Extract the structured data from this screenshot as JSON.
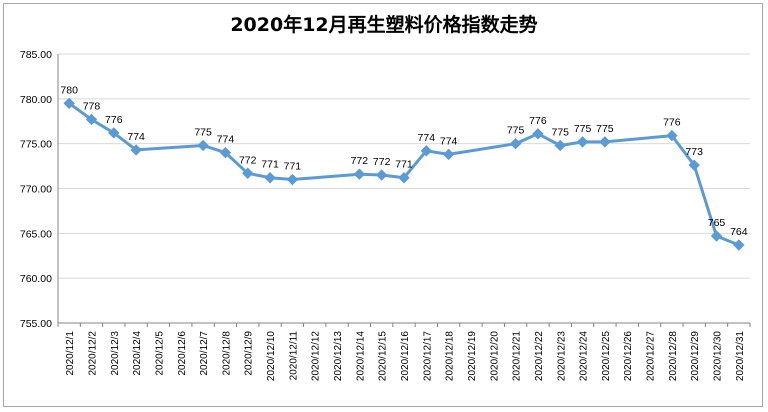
{
  "chart_data": {
    "type": "line",
    "title": "2020年12月再生塑料价格指数走势",
    "xlabel": "",
    "ylabel": "",
    "ylim": [
      755,
      785
    ],
    "y_ticks": [
      "755.00",
      "760.00",
      "765.00",
      "770.00",
      "775.00",
      "780.00",
      "785.00"
    ],
    "y_tick_values": [
      755,
      760,
      765,
      770,
      775,
      780,
      785
    ],
    "grid": true,
    "legend": "none",
    "line_color": "#5b9bd5",
    "categories": [
      "2020/12/1",
      "2020/12/2",
      "2020/12/3",
      "2020/12/4",
      "2020/12/5",
      "2020/12/6",
      "2020/12/7",
      "2020/12/8",
      "2020/12/9",
      "2020/12/10",
      "2020/12/11",
      "2020/12/12",
      "2020/12/13",
      "2020/12/14",
      "2020/12/15",
      "2020/12/16",
      "2020/12/17",
      "2020/12/18",
      "2020/12/19",
      "2020/12/20",
      "2020/12/21",
      "2020/12/22",
      "2020/12/23",
      "2020/12/24",
      "2020/12/25",
      "2020/12/26",
      "2020/12/27",
      "2020/12/28",
      "2020/12/29",
      "2020/12/30",
      "2020/12/31"
    ],
    "values": [
      779.5,
      777.7,
      776.2,
      774.3,
      null,
      null,
      774.8,
      774.0,
      771.7,
      771.2,
      771.0,
      null,
      null,
      771.6,
      771.5,
      771.2,
      774.2,
      773.8,
      null,
      null,
      775.0,
      776.1,
      774.8,
      775.2,
      775.2,
      null,
      null,
      775.9,
      772.6,
      764.7,
      763.7
    ],
    "data_labels": [
      "780",
      "778",
      "776",
      "774",
      null,
      null,
      "775",
      "774",
      "772",
      "771",
      "771",
      null,
      null,
      "772",
      "772",
      "771",
      "774",
      "774",
      null,
      null,
      "775",
      "776",
      "775",
      "775",
      "775",
      null,
      null,
      "776",
      "773",
      "765",
      "764"
    ]
  }
}
